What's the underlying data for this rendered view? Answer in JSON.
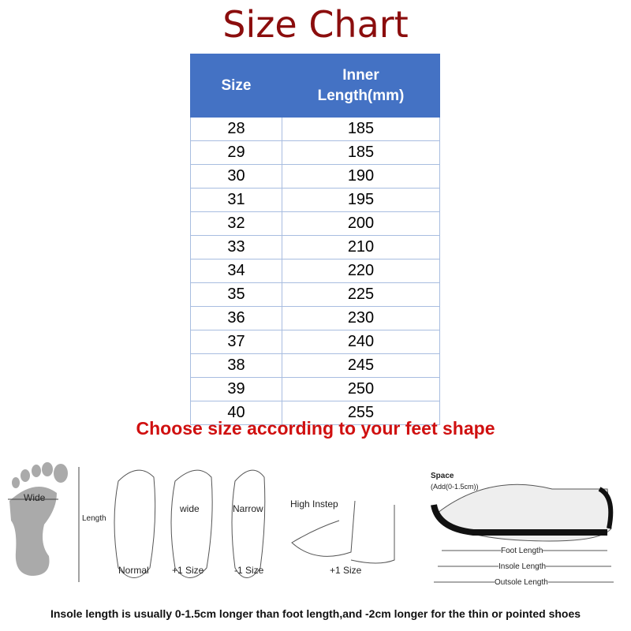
{
  "title": "Size Chart",
  "table": {
    "headers": [
      "Size",
      "Inner Length(mm)"
    ],
    "rows": [
      [
        "28",
        "185"
      ],
      [
        "29",
        "185"
      ],
      [
        "30",
        "190"
      ],
      [
        "31",
        "195"
      ],
      [
        "32",
        "200"
      ],
      [
        "33",
        "210"
      ],
      [
        "34",
        "220"
      ],
      [
        "35",
        "225"
      ],
      [
        "36",
        "230"
      ],
      [
        "37",
        "240"
      ],
      [
        "38",
        "245"
      ],
      [
        "39",
        "250"
      ],
      [
        "40",
        "255"
      ]
    ]
  },
  "guide": {
    "heading": "Choose size according to your feet shape",
    "wide": "Wide",
    "length": "Length",
    "normal": "Normal",
    "wide_foot": "wide",
    "wide_size": "+1 Size",
    "narrow": "Narrow",
    "narrow_size": "-1 Size",
    "high_instep": "High Instep",
    "instep_size": "+1 Size",
    "space": "Space",
    "space_add": "(Add(0-1.5cm))",
    "foot_length": "Foot Length",
    "insole_length": "Insole Length",
    "outsole_length": "Outsole Length",
    "note": "Insole length is usually 0-1.5cm longer than foot length,and -2cm longer for the thin or pointed shoes"
  }
}
